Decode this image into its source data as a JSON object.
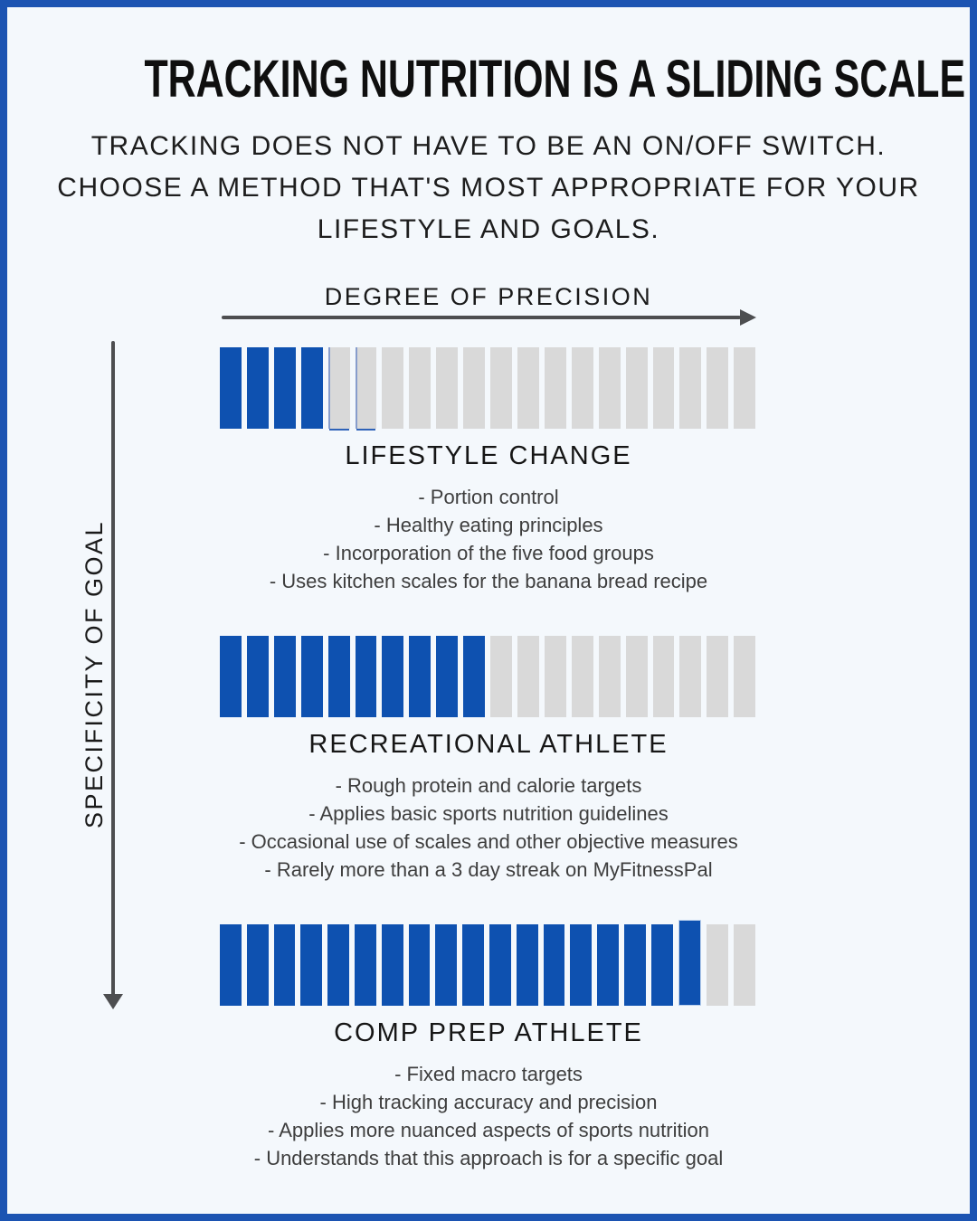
{
  "header": {
    "title": "TRACKING NUTRITION IS A SLIDING SCALE",
    "subtitle_lines": [
      "TRACKING DOES NOT HAVE TO BE AN ON/OFF SWITCH.",
      "CHOOSE A METHOD THAT'S MOST APPROPRIATE FOR YOUR",
      "LIFESTYLE AND GOALS."
    ]
  },
  "axes": {
    "horizontal_label": "DEGREE OF PRECISION",
    "vertical_label": "SPECIFICITY OF GOAL"
  },
  "icons": {
    "horizontal_arrow": "arrow-right-icon",
    "vertical_arrow": "arrow-down-icon"
  },
  "sections": [
    {
      "name": "LIFESTYLE CHANGE",
      "filled_segments": 4,
      "total_segments": 20,
      "bars": [
        "filled",
        "filled",
        "filled",
        "filled",
        "empty-accent",
        "empty-accent",
        "empty",
        "empty",
        "empty",
        "empty",
        "empty",
        "empty",
        "empty",
        "empty",
        "empty",
        "empty",
        "empty",
        "empty",
        "empty",
        "empty"
      ],
      "bullets": [
        "- Portion control",
        "- Healthy eating principles",
        "- Incorporation of the five food groups",
        "- Uses kitchen scales for the banana bread recipe"
      ]
    },
    {
      "name": "RECREATIONAL ATHLETE",
      "filled_segments": 10,
      "total_segments": 20,
      "bars": [
        "filled",
        "filled",
        "filled",
        "filled",
        "filled",
        "filled",
        "filled",
        "filled",
        "filled",
        "filled",
        "empty",
        "empty",
        "empty",
        "empty",
        "empty",
        "empty",
        "empty",
        "empty",
        "empty",
        "empty"
      ],
      "bullets": [
        "- Rough protein and calorie targets",
        "- Applies basic sports nutrition guidelines",
        "- Occasional use of scales and other objective measures",
        "- Rarely more than a 3 day streak on MyFitnessPal"
      ]
    },
    {
      "name": "COMP PREP ATHLETE",
      "filled_segments": 18,
      "total_segments": 20,
      "bars": [
        "filled",
        "filled",
        "filled",
        "filled",
        "filled",
        "filled",
        "filled",
        "filled",
        "filled",
        "filled",
        "filled",
        "filled",
        "filled",
        "filled",
        "filled",
        "filled",
        "filled",
        "filled-raised",
        "empty",
        "empty"
      ],
      "bullets": [
        "- Fixed macro targets",
        "- High tracking accuracy and precision",
        "- Applies more nuanced aspects of sports nutrition",
        "- Understands that this approach is for a specific goal"
      ]
    }
  ],
  "colors": {
    "accent_blue": "#0e51b0",
    "frame_blue": "#1c54b2",
    "bar_empty_gray": "#d9d9d9",
    "arrow_gray": "#4d4e50",
    "background": "#f4f8fc",
    "title_text": "#0f0f0f",
    "body_text": "#3e3e3e"
  }
}
